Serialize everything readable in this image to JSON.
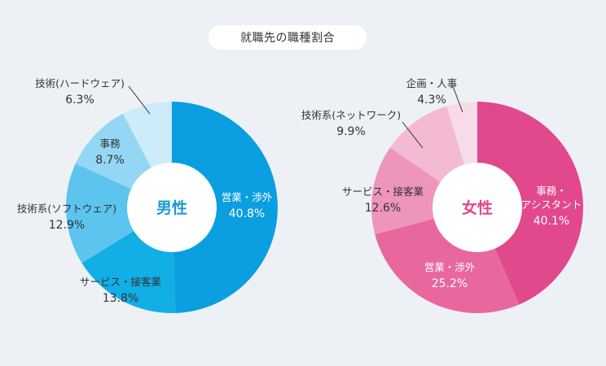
{
  "title": "就職先の職種割合",
  "chart_data": [
    {
      "type": "pie",
      "center_label": "男性",
      "center_color": "#1a9ad6",
      "slices": [
        {
          "name": "営業・渉外",
          "value": 40.8,
          "pct": "40.8%",
          "color": "#0b9ee0"
        },
        {
          "name": "サービス・接客業",
          "value": 13.8,
          "pct": "13.8%",
          "color": "#12aee6"
        },
        {
          "name": "技術系(ソフトウェア)",
          "value": 12.9,
          "pct": "12.9%",
          "color": "#5cc4ee"
        },
        {
          "name": "事務",
          "value": 8.7,
          "pct": "8.7%",
          "color": "#94d7f4"
        },
        {
          "name": "技術(ハードウェア)",
          "value": 6.3,
          "pct": "6.3%",
          "color": "#cdebf9"
        }
      ]
    },
    {
      "type": "pie",
      "center_label": "女性",
      "center_color": "#e0478a",
      "slices": [
        {
          "name": "事務・アシスタント",
          "value": 40.1,
          "pct": "40.1%",
          "color": "#e2488c"
        },
        {
          "name": "営業・渉外",
          "value": 25.2,
          "pct": "25.2%",
          "color": "#e8679f"
        },
        {
          "name": "サービス・接客業",
          "value": 12.6,
          "pct": "12.6%",
          "color": "#ee95bb"
        },
        {
          "name": "技術系(ネットワーク)",
          "value": 9.9,
          "pct": "9.9%",
          "color": "#f4bad3"
        },
        {
          "name": "企画・人事",
          "value": 4.3,
          "pct": "4.3%",
          "color": "#f8dbe8"
        }
      ]
    }
  ]
}
